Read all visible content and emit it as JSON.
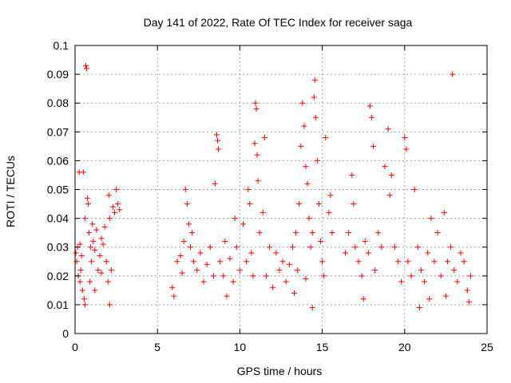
{
  "chart_data": {
    "type": "scatter",
    "title": "Day 141 of 2022, Rate Of TEC Index for receiver saga",
    "xlabel": "GPS time / hours",
    "ylabel": "ROTI / TECUs",
    "xlim": [
      0,
      25
    ],
    "ylim": [
      0,
      0.1
    ],
    "x_ticks": [
      0,
      5,
      10,
      15,
      20,
      25
    ],
    "x_tick_labels": [
      "0",
      "5",
      "10",
      "15",
      "20",
      "25"
    ],
    "y_ticks": [
      0,
      0.01,
      0.02,
      0.03,
      0.04,
      0.05,
      0.06,
      0.07,
      0.08,
      0.09,
      0.1
    ],
    "y_tick_labels": [
      "0",
      "0.01",
      "0.02",
      "0.03",
      "0.04",
      "0.05",
      "0.06",
      "0.07",
      "0.08",
      "0.09",
      "0.1"
    ],
    "grid": true,
    "marker": "+",
    "color": "#ff0000",
    "series": [
      {
        "name": "ROTI",
        "points": [
          [
            0.05,
            0.028
          ],
          [
            0.1,
            0.025
          ],
          [
            0.15,
            0.03
          ],
          [
            0.2,
            0.02
          ],
          [
            0.25,
            0.056
          ],
          [
            0.3,
            0.018
          ],
          [
            0.35,
            0.022
          ],
          [
            0.4,
            0.027
          ],
          [
            0.45,
            0.015
          ],
          [
            0.5,
            0.056
          ],
          [
            0.55,
            0.012
          ],
          [
            0.6,
            0.04
          ],
          [
            0.65,
            0.093
          ],
          [
            0.7,
            0.092
          ],
          [
            0.75,
            0.047
          ],
          [
            0.8,
            0.045
          ],
          [
            0.85,
            0.035
          ],
          [
            0.9,
            0.018
          ],
          [
            0.95,
            0.03
          ],
          [
            1.0,
            0.025
          ],
          [
            1.05,
            0.038
          ],
          [
            1.1,
            0.032
          ],
          [
            1.2,
            0.029
          ],
          [
            1.3,
            0.036
          ],
          [
            1.4,
            0.022
          ],
          [
            1.5,
            0.027
          ],
          [
            1.6,
            0.033
          ],
          [
            1.7,
            0.031
          ],
          [
            1.8,
            0.037
          ],
          [
            1.9,
            0.025
          ],
          [
            2.0,
            0.018
          ],
          [
            2.05,
            0.048
          ],
          [
            2.1,
            0.04
          ],
          [
            2.2,
            0.022
          ],
          [
            2.3,
            0.044
          ],
          [
            2.4,
            0.042
          ],
          [
            2.5,
            0.05
          ],
          [
            2.6,
            0.045
          ],
          [
            2.7,
            0.043
          ],
          [
            2.1,
            0.01
          ],
          [
            0.6,
            0.01
          ],
          [
            1.2,
            0.015
          ],
          [
            1.6,
            0.021
          ],
          [
            0.3,
            0.031
          ],
          [
            5.9,
            0.016
          ],
          [
            6.0,
            0.013
          ],
          [
            6.2,
            0.025
          ],
          [
            6.4,
            0.027
          ],
          [
            6.5,
            0.021
          ],
          [
            6.6,
            0.032
          ],
          [
            6.7,
            0.05
          ],
          [
            6.8,
            0.045
          ],
          [
            6.9,
            0.038
          ],
          [
            7.0,
            0.03
          ],
          [
            7.1,
            0.035
          ],
          [
            7.2,
            0.025
          ],
          [
            7.4,
            0.022
          ],
          [
            7.6,
            0.028
          ],
          [
            7.8,
            0.018
          ],
          [
            8.0,
            0.024
          ],
          [
            8.2,
            0.03
          ],
          [
            8.4,
            0.02
          ],
          [
            8.5,
            0.052
          ],
          [
            8.6,
            0.069
          ],
          [
            8.65,
            0.067
          ],
          [
            8.7,
            0.064
          ],
          [
            8.8,
            0.025
          ],
          [
            9.0,
            0.02
          ],
          [
            9.1,
            0.032
          ],
          [
            9.2,
            0.013
          ],
          [
            9.4,
            0.026
          ],
          [
            9.6,
            0.018
          ],
          [
            9.7,
            0.04
          ],
          [
            9.8,
            0.03
          ],
          [
            10.0,
            0.022
          ],
          [
            10.2,
            0.038
          ],
          [
            10.4,
            0.025
          ],
          [
            10.5,
            0.05
          ],
          [
            10.6,
            0.045
          ],
          [
            10.7,
            0.028
          ],
          [
            10.8,
            0.02
          ],
          [
            10.9,
            0.066
          ],
          [
            10.95,
            0.08
          ],
          [
            11.0,
            0.078
          ],
          [
            11.05,
            0.062
          ],
          [
            11.1,
            0.053
          ],
          [
            11.2,
            0.035
          ],
          [
            11.4,
            0.042
          ],
          [
            11.5,
            0.068
          ],
          [
            11.6,
            0.02
          ],
          [
            11.8,
            0.03
          ],
          [
            12.0,
            0.016
          ],
          [
            12.2,
            0.028
          ],
          [
            12.4,
            0.022
          ],
          [
            12.6,
            0.025
          ],
          [
            12.8,
            0.018
          ],
          [
            13.0,
            0.024
          ],
          [
            13.2,
            0.03
          ],
          [
            13.4,
            0.035
          ],
          [
            13.6,
            0.045
          ],
          [
            13.7,
            0.065
          ],
          [
            13.8,
            0.08
          ],
          [
            13.9,
            0.072
          ],
          [
            14.0,
            0.058
          ],
          [
            14.1,
            0.052
          ],
          [
            14.2,
            0.04
          ],
          [
            14.3,
            0.03
          ],
          [
            14.4,
            0.035
          ],
          [
            14.5,
            0.082
          ],
          [
            14.55,
            0.088
          ],
          [
            14.6,
            0.075
          ],
          [
            14.7,
            0.06
          ],
          [
            14.8,
            0.045
          ],
          [
            14.9,
            0.032
          ],
          [
            15.0,
            0.025
          ],
          [
            15.2,
            0.068
          ],
          [
            15.4,
            0.042
          ],
          [
            15.5,
            0.048
          ],
          [
            15.6,
            0.035
          ],
          [
            14.4,
            0.009
          ],
          [
            13.3,
            0.014
          ],
          [
            13.5,
            0.022
          ],
          [
            14.0,
            0.019
          ],
          [
            15.1,
            0.02
          ],
          [
            16.4,
            0.028
          ],
          [
            16.6,
            0.035
          ],
          [
            16.8,
            0.055
          ],
          [
            16.9,
            0.045
          ],
          [
            17.0,
            0.03
          ],
          [
            17.2,
            0.025
          ],
          [
            17.4,
            0.02
          ],
          [
            17.5,
            0.012
          ],
          [
            17.6,
            0.032
          ],
          [
            17.8,
            0.028
          ],
          [
            17.9,
            0.079
          ],
          [
            18.0,
            0.075
          ],
          [
            18.1,
            0.065
          ],
          [
            18.2,
            0.022
          ],
          [
            18.4,
            0.035
          ],
          [
            18.6,
            0.03
          ],
          [
            18.8,
            0.058
          ],
          [
            19.0,
            0.071
          ],
          [
            19.1,
            0.048
          ],
          [
            19.2,
            0.055
          ],
          [
            19.4,
            0.03
          ],
          [
            19.6,
            0.025
          ],
          [
            19.8,
            0.018
          ],
          [
            20.0,
            0.068
          ],
          [
            20.1,
            0.064
          ],
          [
            20.2,
            0.025
          ],
          [
            20.4,
            0.02
          ],
          [
            20.6,
            0.05
          ],
          [
            20.8,
            0.03
          ],
          [
            21.0,
            0.022
          ],
          [
            21.2,
            0.018
          ],
          [
            21.4,
            0.028
          ],
          [
            21.6,
            0.04
          ],
          [
            21.8,
            0.025
          ],
          [
            22.0,
            0.035
          ],
          [
            22.2,
            0.02
          ],
          [
            22.4,
            0.042
          ],
          [
            22.6,
            0.025
          ],
          [
            22.8,
            0.03
          ],
          [
            22.9,
            0.09
          ],
          [
            23.0,
            0.022
          ],
          [
            23.2,
            0.018
          ],
          [
            23.4,
            0.028
          ],
          [
            23.6,
            0.025
          ],
          [
            23.8,
            0.015
          ],
          [
            24.0,
            0.02
          ],
          [
            23.9,
            0.011
          ],
          [
            20.9,
            0.009
          ],
          [
            21.5,
            0.012
          ],
          [
            22.5,
            0.013
          ]
        ]
      }
    ]
  }
}
